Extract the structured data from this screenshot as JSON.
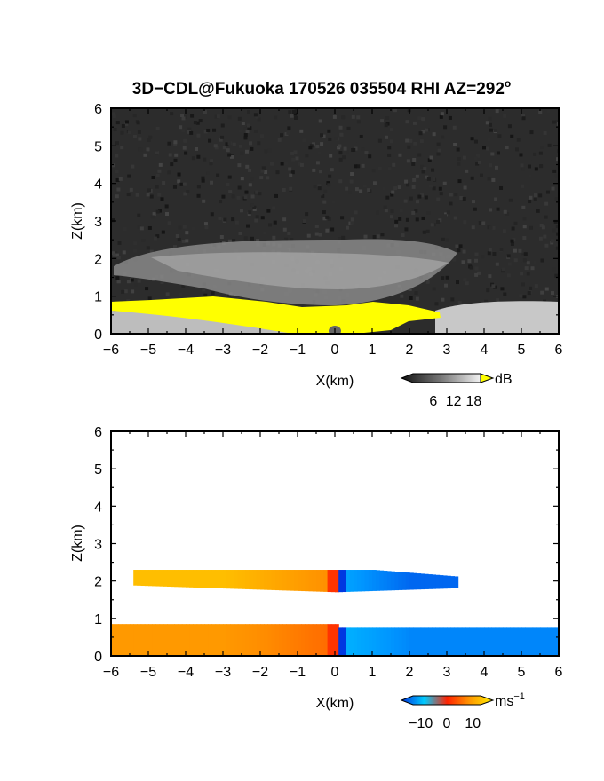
{
  "figure_title": "3D−CDL@Fukuoka 170526 035504 RHI AZ=292",
  "figure_title_deg": "o",
  "chart_data": [
    {
      "type": "heatmap",
      "panel": "top",
      "quantity": "backscatter intensity",
      "xlabel": "X(km)",
      "ylabel": "Z(km)",
      "xlim": [
        -6,
        6
      ],
      "ylim": [
        0,
        6
      ],
      "xticks": [
        -6,
        -5,
        -4,
        -3,
        -2,
        -1,
        0,
        1,
        2,
        3,
        4,
        5,
        6
      ],
      "yticks": [
        0,
        1,
        2,
        3,
        4,
        5,
        6
      ],
      "colorbar": {
        "unit": "dB",
        "ticks": [
          6,
          12,
          18
        ],
        "colormap": "grayscale",
        "overflow_color": "#ffff00",
        "range": [
          0,
          20
        ]
      },
      "features": [
        {
          "name": "aerosol layer",
          "x": [
            -5,
            3
          ],
          "z_center": 1.8,
          "value_db": 14
        },
        {
          "name": "saturated near-surface layer",
          "x": [
            -6,
            2.8
          ],
          "z_top": 0.9,
          "value_db": 20
        },
        {
          "name": "mixed layer (right)",
          "x": [
            2.8,
            6
          ],
          "z_top": 0.9,
          "value_db": 12
        }
      ]
    },
    {
      "type": "heatmap",
      "panel": "bottom",
      "quantity": "radial velocity",
      "xlabel": "X(km)",
      "ylabel": "Z(km)",
      "xlim": [
        -6,
        6
      ],
      "ylim": [
        0,
        6
      ],
      "xticks": [
        -6,
        -5,
        -4,
        -3,
        -2,
        -1,
        0,
        1,
        2,
        3,
        4,
        5,
        6
      ],
      "yticks": [
        0,
        1,
        2,
        3,
        4,
        5,
        6
      ],
      "colorbar": {
        "unit": "ms",
        "unit_exponent": "−1",
        "ticks": [
          "−10",
          "0",
          "10"
        ],
        "range": [
          -13,
          13
        ],
        "colormap": [
          "#0033dd",
          "#0099ff",
          "#00ddff",
          "#ff3300",
          "#ff8800",
          "#ffee00"
        ]
      },
      "features": [
        {
          "name": "upper layer",
          "x": [
            -5.4,
            3.2
          ],
          "z": [
            1.7,
            2.3
          ],
          "velocity_left": 9,
          "velocity_right": -9
        },
        {
          "name": "lower layer",
          "x": [
            -6,
            6
          ],
          "z": [
            0,
            0.85
          ],
          "velocity_left": 6,
          "velocity_right": -7
        }
      ]
    }
  ]
}
